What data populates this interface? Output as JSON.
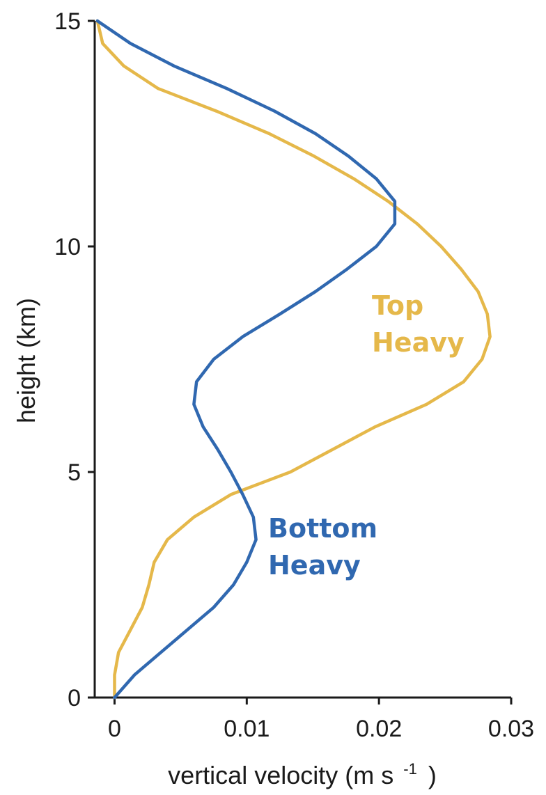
{
  "chart_data": {
    "type": "line",
    "xlabel": "vertical velocity (m s",
    "xlabel_exponent": "-1",
    "xlabel_close": ")",
    "ylabel": "height (km)",
    "xlim": [
      -0.0015,
      0.03
    ],
    "ylim": [
      0,
      15
    ],
    "xticks": [
      0,
      0.01,
      0.02,
      0.03
    ],
    "xtick_labels": [
      "0",
      "0.01",
      "0.02",
      "0.03"
    ],
    "yticks": [
      0,
      5,
      10,
      15
    ],
    "ytick_labels": [
      "0",
      "5",
      "10",
      "15"
    ],
    "grid": false,
    "series": [
      {
        "label_lines": [
          "Bottom",
          "Heavy"
        ],
        "color": "#3068B0",
        "points": [
          [
            0.0,
            0.0
          ],
          [
            0.0015,
            0.5
          ],
          [
            0.0035,
            1.0
          ],
          [
            0.0055,
            1.5
          ],
          [
            0.0075,
            2.0
          ],
          [
            0.009,
            2.5
          ],
          [
            0.01,
            3.0
          ],
          [
            0.0107,
            3.5
          ],
          [
            0.0105,
            4.0
          ],
          [
            0.0097,
            4.5
          ],
          [
            0.0088,
            5.0
          ],
          [
            0.0078,
            5.5
          ],
          [
            0.0067,
            6.0
          ],
          [
            0.006,
            6.5
          ],
          [
            0.0062,
            7.0
          ],
          [
            0.0075,
            7.5
          ],
          [
            0.0097,
            8.0
          ],
          [
            0.0125,
            8.5
          ],
          [
            0.0152,
            9.0
          ],
          [
            0.0176,
            9.5
          ],
          [
            0.0198,
            10.0
          ],
          [
            0.0212,
            10.5
          ],
          [
            0.0212,
            11.0
          ],
          [
            0.0198,
            11.5
          ],
          [
            0.0177,
            12.0
          ],
          [
            0.0152,
            12.5
          ],
          [
            0.0121,
            13.0
          ],
          [
            0.0085,
            13.5
          ],
          [
            0.0045,
            14.0
          ],
          [
            0.0012,
            14.5
          ],
          [
            -0.0013,
            15.0
          ]
        ]
      },
      {
        "label_lines": [
          "Top",
          "Heavy"
        ],
        "color": "#E5B84A",
        "points": [
          [
            0.0,
            0.0
          ],
          [
            0.0,
            0.5
          ],
          [
            0.0003,
            1.0
          ],
          [
            0.0012,
            1.5
          ],
          [
            0.0021,
            2.0
          ],
          [
            0.0026,
            2.5
          ],
          [
            0.003,
            3.0
          ],
          [
            0.004,
            3.5
          ],
          [
            0.006,
            4.0
          ],
          [
            0.0088,
            4.5
          ],
          [
            0.0133,
            5.0
          ],
          [
            0.0197,
            6.0
          ],
          [
            0.0236,
            6.5
          ],
          [
            0.0264,
            7.0
          ],
          [
            0.0278,
            7.5
          ],
          [
            0.0284,
            8.0
          ],
          [
            0.0282,
            8.5
          ],
          [
            0.0275,
            9.0
          ],
          [
            0.0262,
            9.5
          ],
          [
            0.0247,
            10.0
          ],
          [
            0.0229,
            10.5
          ],
          [
            0.0207,
            11.0
          ],
          [
            0.0181,
            11.5
          ],
          [
            0.0151,
            12.0
          ],
          [
            0.0117,
            12.5
          ],
          [
            0.0077,
            13.0
          ],
          [
            0.0033,
            13.5
          ],
          [
            0.0007,
            14.0
          ],
          [
            -0.0009,
            14.5
          ],
          [
            -0.0013,
            15.0
          ]
        ]
      }
    ]
  }
}
